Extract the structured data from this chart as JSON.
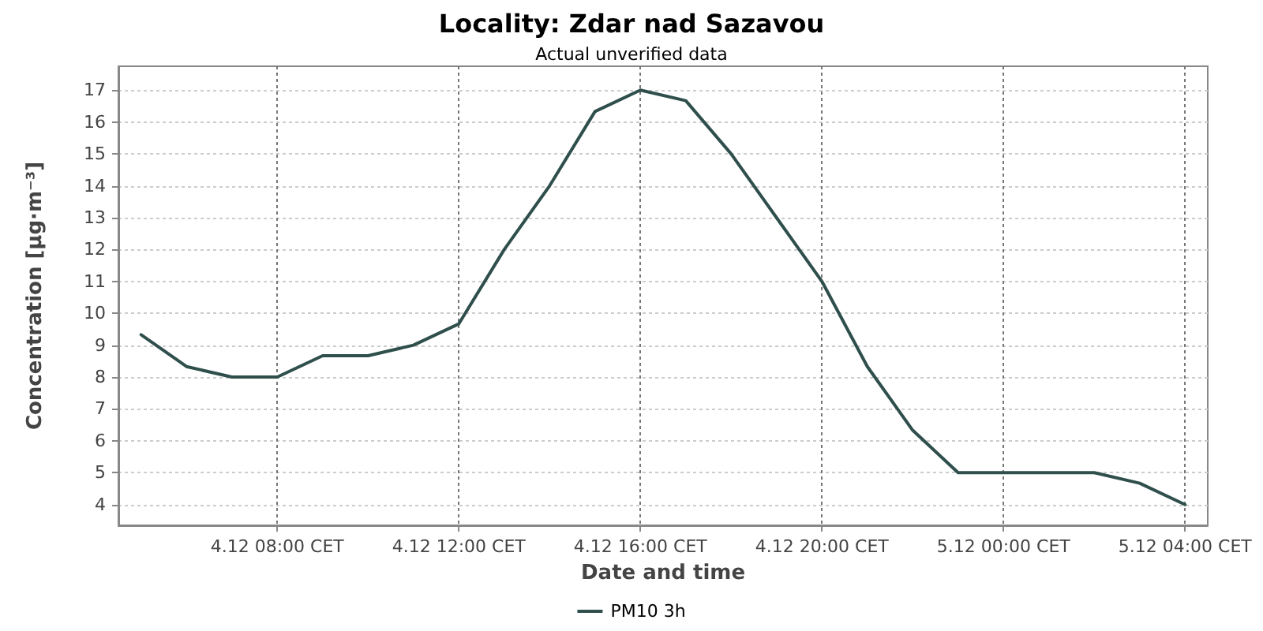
{
  "chart_data": {
    "type": "line",
    "title": "Locality: Zdar nad Sazavou",
    "subtitle": "Actual unverified data",
    "xlabel": "Date and time",
    "ylabel": "Concentration [µg·m⁻³]",
    "x": [
      "--12-04T05:00",
      "--12-04T06:00",
      "--12-04T07:00",
      "--12-04T08:00",
      "--12-04T09:00",
      "--12-04T10:00",
      "--12-04T11:00",
      "--12-04T12:00",
      "--12-04T13:00",
      "--12-04T14:00",
      "--12-04T15:00",
      "--12-04T16:00",
      "--12-04T17:00",
      "--12-04T18:00",
      "--12-04T19:00",
      "--12-04T20:00",
      "--12-04T21:00",
      "--12-04T22:00",
      "--12-04T23:00",
      "--12-05T00:00",
      "--12-05T01:00",
      "--12-05T02:00",
      "--12-05T03:00",
      "--12-05T04:00"
    ],
    "series": [
      {
        "name": "PM10 3h",
        "color": "#2f4f4c",
        "values": [
          9.33,
          8.33,
          8,
          8,
          8.67,
          8.67,
          9,
          9.67,
          12,
          14,
          16.33,
          17,
          16.67,
          15,
          13,
          11,
          8.33,
          6.33,
          5,
          5,
          5,
          5,
          4.67,
          4
        ]
      }
    ],
    "xlim": [
      "--12-04T04:30",
      "--12-05T04:30"
    ],
    "xticks": [
      {
        "value": "--12-04T08:00",
        "label": "4.12 08:00 CET"
      },
      {
        "value": "--12-04T12:00",
        "label": "4.12 12:00 CET"
      },
      {
        "value": "--12-04T16:00",
        "label": "4.12 16:00 CET"
      },
      {
        "value": "--12-04T20:00",
        "label": "4.12 20:00 CET"
      },
      {
        "value": "--12-05T00:00",
        "label": "5.12 00:00 CET"
      },
      {
        "value": "--12-05T04:00",
        "label": "5.12 04:00 CET"
      }
    ],
    "ylim": [
      3.35,
      17.75
    ],
    "yticks": [
      4,
      5,
      6,
      7,
      8,
      9,
      10,
      11,
      12,
      13,
      14,
      15,
      16,
      17
    ],
    "grid": true,
    "legend": "bottom",
    "marker": "none",
    "line_style": "solid"
  }
}
